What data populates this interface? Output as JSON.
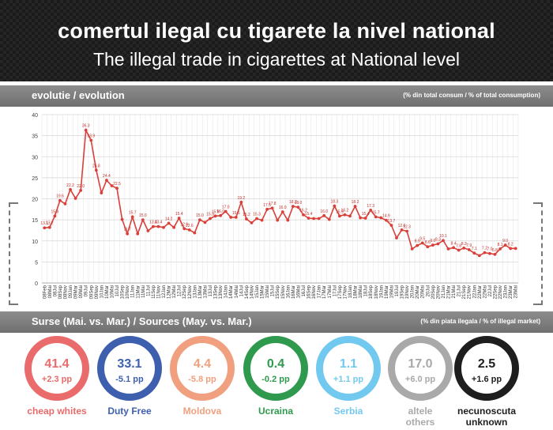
{
  "header": {
    "title": "comertul ilegal cu tigarete la nivel national",
    "subtitle": "The illegal trade in cigarettes at National level"
  },
  "evolution_bar": {
    "left": "evolutie / evolution",
    "right": "(% din total consum / % of total consumption)"
  },
  "sources_bar": {
    "left": "Surse (Mai. vs. Mar.) / Sources (May. vs. Mar.)",
    "right": "(% din piata ilegala / % of illegal market)"
  },
  "chart_data": {
    "type": "line",
    "title": "evolutie / evolution",
    "ylabel": "% din total consum / % of total consumption",
    "ylim": [
      0,
      40
    ],
    "yticks": [
      0,
      5,
      10,
      15,
      20,
      25,
      30,
      35,
      40
    ],
    "grid": true,
    "color": "#d9403a",
    "x": [
      "08Feb",
      "08Mai",
      "08Jul",
      "08Sep",
      "08Nov",
      "09Jan",
      "09Mar",
      "09Mai",
      "09Jul",
      "09Sep",
      "09Nov",
      "10Jan",
      "10Mar",
      "10Mai",
      "10Jul",
      "10Sep",
      "10Nov",
      "11Jan",
      "11Mar",
      "11Mai",
      "11Jul",
      "11Sep",
      "11Nov",
      "12Jan",
      "12Mar",
      "12Mai",
      "12Jul",
      "12Sep",
      "12Nov",
      "13Jan",
      "13Mar",
      "13Mai",
      "13Jul",
      "13Sep",
      "13Nov",
      "14Jan",
      "14Mar",
      "14Mai",
      "14Jul",
      "14Sep",
      "14Nov",
      "15Jan",
      "15Mar",
      "15Mai",
      "15Jul",
      "15Sep",
      "15Nov",
      "16Jan",
      "16Mar",
      "16Mai",
      "16Jul",
      "16Sep",
      "16Nov",
      "17Jan",
      "17Mar",
      "17Mai",
      "17Jul",
      "17Sep",
      "17Nov",
      "18Jan",
      "18Mar",
      "18Mai",
      "18Jul",
      "18Sep",
      "18Nov",
      "19Jan",
      "19Mar",
      "19Mai",
      "19Jul",
      "19Sep",
      "19Nov",
      "20Jan",
      "20Mar",
      "20Mai",
      "20Jul",
      "20Sep",
      "20Nov",
      "21Jan",
      "21Mar",
      "21Mai",
      "21Jul",
      "21Sep",
      "21Nov",
      "22Jan",
      "22Mar",
      "22Mai",
      "22Jul",
      "22Sep",
      "22Nov",
      "23Jan",
      "23Mar",
      "23Mai"
    ],
    "values": [
      13.1,
      13.2,
      15.9,
      19.6,
      18.8,
      22.2,
      20.1,
      22.0,
      36.3,
      33.9,
      26.8,
      21.4,
      24.4,
      23.1,
      22.5,
      15.1,
      11.7,
      15.7,
      11.7,
      15.0,
      12.4,
      13.4,
      13.4,
      13.2,
      14.2,
      13.2,
      15.4,
      12.9,
      12.6,
      11.9,
      15.0,
      14.4,
      15.3,
      15.9,
      16.0,
      17.0,
      15.6,
      15.6,
      19.2,
      15.2,
      14.3,
      15.3,
      14.9,
      17.5,
      17.8,
      14.9,
      16.9,
      14.9,
      18.2,
      18.0,
      16.2,
      15.4,
      15.3,
      15.3,
      16.0,
      15.1,
      18.3,
      15.9,
      16.2,
      15.9,
      18.2,
      15.5,
      15.4,
      17.3,
      15.7,
      15.5,
      14.9,
      13.7,
      10.7,
      12.6,
      12.3,
      8.1,
      8.9,
      9.5,
      8.6,
      9.0,
      9.3,
      10.1,
      8.1,
      8.4,
      7.8,
      8.3,
      7.9,
      7.1,
      6.5,
      7.2,
      7.0,
      6.8,
      8.1,
      9.0,
      8.2,
      8.2
    ],
    "labels": [
      "13.1",
      "13.2",
      "15.9",
      "19.6",
      "",
      "22.2",
      "",
      "22.0",
      "36.3",
      "33.9",
      "26.8",
      "",
      "24.4",
      "",
      "22.5",
      "",
      "11.7",
      "15.7",
      "",
      "15.0",
      "",
      "13.4",
      "13.4",
      "",
      "14.2",
      "",
      "15.4",
      "12.9",
      "12.6",
      "",
      "15.0",
      "",
      "15.3",
      "15.9",
      "16.0",
      "17.0",
      "",
      "15.6",
      "19.2",
      "15.2",
      "",
      "15.3",
      "",
      "17.5",
      "17.8",
      "",
      "16.9",
      "",
      "18.2",
      "18.0",
      "16.2",
      "15.4",
      "",
      "",
      "16.0",
      "",
      "18.3",
      "15.9",
      "16.2",
      "",
      "18.2",
      "",
      "15.4",
      "17.3",
      "15.7",
      "",
      "14.9",
      "13.7",
      "",
      "12.6",
      "12.3",
      "",
      "8.9",
      "9.5",
      "8.6",
      "9.0",
      "9.3",
      "10.1",
      "",
      "8.4",
      "7.8",
      "8.3",
      "7.9",
      "7.1",
      "",
      "7.2",
      "7.0",
      "6.8",
      "8.1",
      "9.0",
      "8.2",
      ""
    ]
  },
  "sources": [
    {
      "value": "41.4",
      "change": "+2.3 pp",
      "label": "cheap whites",
      "color": "#e96b6b"
    },
    {
      "value": "33.1",
      "change": "-5.1 pp",
      "label": "Duty Free",
      "color": "#3d5fae"
    },
    {
      "value": "4.4",
      "change": "-5.8 pp",
      "label": "Moldova",
      "color": "#f0a07f"
    },
    {
      "value": "0.4",
      "change": "-0.2 pp",
      "label": "Ucraina",
      "color": "#2f9a4d"
    },
    {
      "value": "1.1",
      "change": "+1.1 pp",
      "label": "Serbia",
      "color": "#72c9ef"
    },
    {
      "value": "17.0",
      "change": "+6.0 pp",
      "label": "altele\nothers",
      "color": "#a9a9a9"
    },
    {
      "value": "2.5",
      "change": "+1.6 pp",
      "label": "necunoscuta\nunknown",
      "color": "#1e1e1e"
    }
  ]
}
